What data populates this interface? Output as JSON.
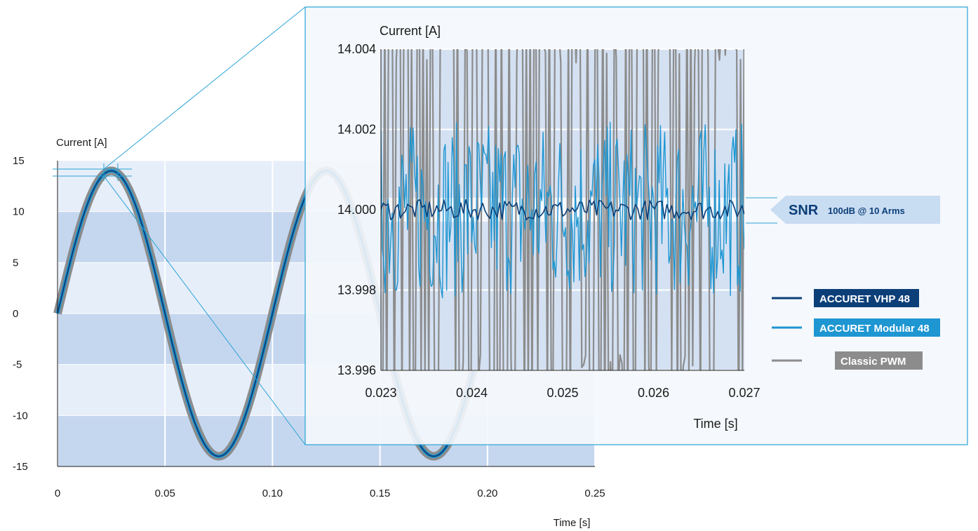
{
  "chart_data": [
    {
      "type": "line",
      "id": "main",
      "ylabel": "Current [A]",
      "xlabel": "Time [s]",
      "xlim": [
        0,
        0.25
      ],
      "ylim": [
        -15,
        15
      ],
      "xticks": [
        0,
        0.05,
        0.1,
        0.15,
        0.2,
        0.25
      ],
      "xtick_labels": [
        "0",
        "0.05",
        "0.10",
        "0.15",
        "0.20",
        "0.25"
      ],
      "yticks": [
        15,
        10,
        5,
        0,
        -5,
        -10,
        -15
      ],
      "ytick_labels": [
        "15",
        "10",
        "5",
        "0",
        "-5",
        "-10",
        "-15"
      ],
      "grid": true,
      "series": [
        {
          "name": "Classic PWM",
          "color": "#8c8c8c",
          "amplitude": 14,
          "frequency_hz": 10,
          "x_start": 0,
          "x_end": 0.25
        },
        {
          "name": "ACCURET Modular 48",
          "color": "#1e96d2",
          "amplitude": 14,
          "frequency_hz": 10,
          "x_start": 0,
          "x_end": 0.25
        },
        {
          "name": "ACCURET VHP 48",
          "color": "#0c3f78",
          "amplitude": 14,
          "frequency_hz": 10,
          "x_start": 0,
          "x_end": 0.25
        }
      ]
    },
    {
      "type": "line",
      "id": "zoom",
      "ylabel": "Current [A]",
      "xlabel": "Time [s]",
      "xlim": [
        0.023,
        0.027
      ],
      "ylim": [
        13.996,
        14.004
      ],
      "xticks": [
        0.023,
        0.024,
        0.025,
        0.026,
        0.027
      ],
      "xtick_labels": [
        "0.023",
        "0.024",
        "0.025",
        "0.026",
        "0.027"
      ],
      "yticks": [
        14.004,
        14.002,
        14.0,
        13.998,
        13.996
      ],
      "ytick_labels": [
        "14.004",
        "14.002",
        "14.000",
        "13.998",
        "13.996"
      ],
      "bands": [
        [
          14.002,
          14.004
        ],
        [
          13.998,
          14.002
        ],
        [
          13.996,
          13.998
        ]
      ],
      "series": [
        {
          "name": "Classic PWM",
          "color": "#8c8c8c",
          "center": 14.0,
          "noise_peak": 0.006
        },
        {
          "name": "ACCURET Modular 48",
          "color": "#1e96d2",
          "center": 14.0,
          "noise_peak": 0.0022
        },
        {
          "name": "ACCURET VHP 48",
          "color": "#0c3f78",
          "center": 14.0,
          "noise_peak": 0.00025
        }
      ]
    }
  ],
  "snr": {
    "label": "SNR",
    "value": "100dB @ 10 Arms"
  },
  "legend": [
    {
      "label": "ACCURET VHP 48",
      "color": "#0c3f78"
    },
    {
      "label": "ACCURET Modular 48",
      "color": "#1e96d2"
    },
    {
      "label": "Classic PWM",
      "color": "#8c8c8c"
    }
  ],
  "colors": {
    "band_dark": "#c5d7ef",
    "band_light": "#e6eef9",
    "inset_bg": "#f4f7fc",
    "inset_border": "#2aa3d6",
    "snr_bg": "#c8dcf2",
    "snr_text": "#0c3f78"
  }
}
